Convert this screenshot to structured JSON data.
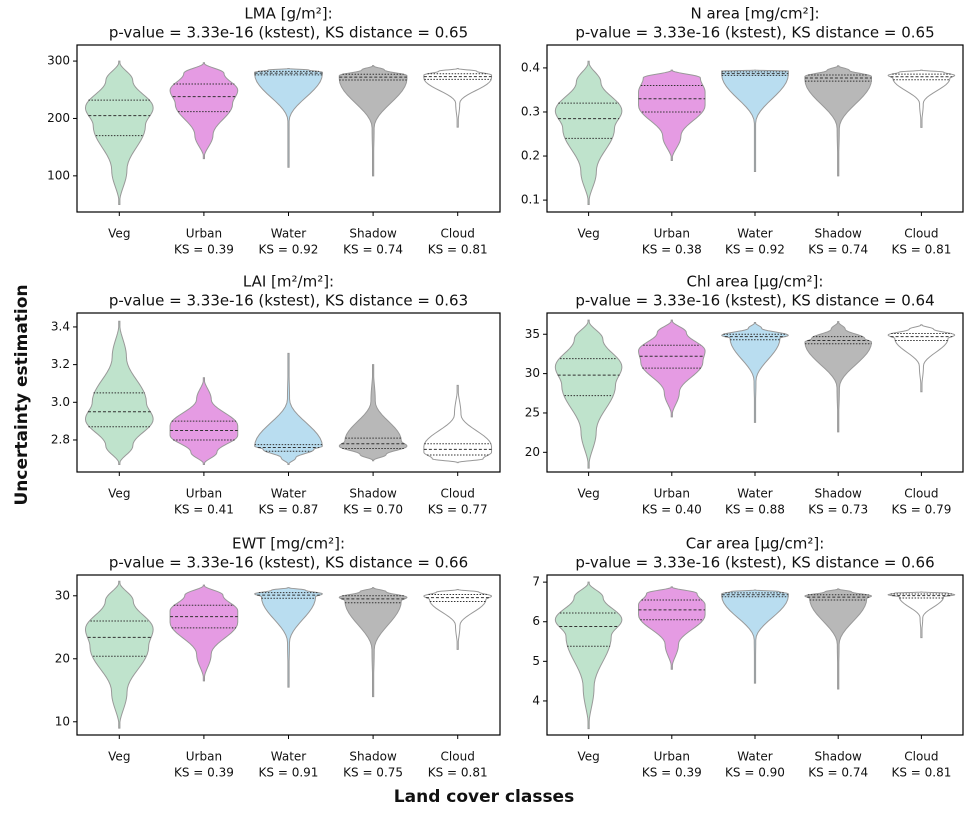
{
  "ylabel": "Uncertainty estimation",
  "xlabel": "Land cover classes",
  "chart_data": [
    {
      "type": "violin",
      "title": "LMA [g/m²]:",
      "subtitle": "p-value = 3.33e-16 (kstest), KS distance = 0.65",
      "categories": [
        "Veg",
        "Urban",
        "Water",
        "Shadow",
        "Cloud"
      ],
      "ks_labels": [
        null,
        "KS = 0.39",
        "KS = 0.92",
        "KS = 0.74",
        "KS = 0.81"
      ],
      "colors": [
        "#bfe3cc",
        "#e59be3",
        "#b9ddf0",
        "#b8b8b8",
        "#ffffff"
      ],
      "ylim": [
        37,
        328
      ],
      "yticks": [
        100,
        200,
        300
      ],
      "violins": [
        {
          "min": 50,
          "q1": 170,
          "median": 205,
          "q3": 232,
          "max": 300
        },
        {
          "min": 130,
          "q1": 212,
          "median": 238,
          "q3": 260,
          "max": 297
        },
        {
          "min": 115,
          "q1": 276,
          "median": 279,
          "q3": 282,
          "max": 287
        },
        {
          "min": 100,
          "q1": 267,
          "median": 272,
          "q3": 277,
          "max": 292
        },
        {
          "min": 185,
          "q1": 268,
          "median": 273,
          "q3": 278,
          "max": 287
        }
      ]
    },
    {
      "type": "violin",
      "title": "N area [mg/cm²]:",
      "subtitle": "p-value = 3.33e-16 (kstest), KS distance = 0.65",
      "categories": [
        "Veg",
        "Urban",
        "Water",
        "Shadow",
        "Cloud"
      ],
      "ks_labels": [
        null,
        "KS = 0.38",
        "KS = 0.92",
        "KS = 0.74",
        "KS = 0.81"
      ],
      "colors": [
        "#bfe3cc",
        "#e59be3",
        "#b9ddf0",
        "#b8b8b8",
        "#ffffff"
      ],
      "ylim": [
        0.073,
        0.452
      ],
      "yticks": [
        0.1,
        0.2,
        0.3,
        0.4
      ],
      "violins": [
        {
          "min": 0.09,
          "q1": 0.24,
          "median": 0.285,
          "q3": 0.32,
          "max": 0.415
        },
        {
          "min": 0.19,
          "q1": 0.3,
          "median": 0.33,
          "q3": 0.36,
          "max": 0.395
        },
        {
          "min": 0.165,
          "q1": 0.383,
          "median": 0.387,
          "q3": 0.391,
          "max": 0.395
        },
        {
          "min": 0.155,
          "q1": 0.37,
          "median": 0.377,
          "q3": 0.384,
          "max": 0.405
        },
        {
          "min": 0.265,
          "q1": 0.373,
          "median": 0.38,
          "q3": 0.386,
          "max": 0.395
        }
      ]
    },
    {
      "type": "violin",
      "title": "LAI [m²/m²]:",
      "subtitle": "p-value = 3.33e-16 (kstest), KS distance = 0.63",
      "categories": [
        "Veg",
        "Urban",
        "Water",
        "Shadow",
        "Cloud"
      ],
      "ks_labels": [
        null,
        "KS = 0.41",
        "KS = 0.87",
        "KS = 0.70",
        "KS = 0.77"
      ],
      "colors": [
        "#bfe3cc",
        "#e59be3",
        "#b9ddf0",
        "#b8b8b8",
        "#ffffff"
      ],
      "ylim": [
        2.63,
        3.474
      ],
      "yticks": [
        2.8,
        {
          "value": 3,
          "label": "3.0"
        },
        3.2,
        3.4
      ],
      "violins": [
        {
          "min": 2.67,
          "q1": 2.87,
          "median": 2.95,
          "q3": 3.05,
          "max": 3.43
        },
        {
          "min": 2.67,
          "q1": 2.8,
          "median": 2.85,
          "q3": 2.9,
          "max": 3.13
        },
        {
          "min": 2.67,
          "q1": 2.74,
          "median": 2.76,
          "q3": 2.775,
          "max": 3.26
        },
        {
          "min": 2.69,
          "q1": 2.755,
          "median": 2.78,
          "q3": 2.81,
          "max": 3.2
        },
        {
          "min": 2.68,
          "q1": 2.72,
          "median": 2.75,
          "q3": 2.78,
          "max": 3.09
        }
      ]
    },
    {
      "type": "violin",
      "title": "Chl area [µg/cm²]:",
      "subtitle": "p-value = 3.33e-16 (kstest), KS distance = 0.64",
      "categories": [
        "Veg",
        "Urban",
        "Water",
        "Shadow",
        "Cloud"
      ],
      "ks_labels": [
        null,
        "KS = 0.40",
        "KS = 0.88",
        "KS = 0.73",
        "KS = 0.79"
      ],
      "colors": [
        "#bfe3cc",
        "#e59be3",
        "#b9ddf0",
        "#b8b8b8",
        "#ffffff"
      ],
      "ylim": [
        17.5,
        37.7
      ],
      "yticks": [
        20,
        25,
        30,
        35
      ],
      "violins": [
        {
          "min": 18,
          "q1": 27.2,
          "median": 29.8,
          "q3": 31.9,
          "max": 36.8
        },
        {
          "min": 24.5,
          "q1": 30.7,
          "median": 32.2,
          "q3": 33.6,
          "max": 36.8
        },
        {
          "min": 23.8,
          "q1": 34.3,
          "median": 34.7,
          "q3": 35.0,
          "max": 36.5
        },
        {
          "min": 22.6,
          "q1": 33.8,
          "median": 34.2,
          "q3": 34.7,
          "max": 36.6
        },
        {
          "min": 27.7,
          "q1": 34.2,
          "median": 34.7,
          "q3": 35.1,
          "max": 36.2
        }
      ]
    },
    {
      "type": "violin",
      "title": "EWT [mg/cm²]:",
      "subtitle": "p-value = 3.33e-16 (kstest), KS distance = 0.66",
      "categories": [
        "Veg",
        "Urban",
        "Water",
        "Shadow",
        "Cloud"
      ],
      "ks_labels": [
        null,
        "KS = 0.39",
        "KS = 0.91",
        "KS = 0.75",
        "KS = 0.81"
      ],
      "colors": [
        "#bfe3cc",
        "#e59be3",
        "#b9ddf0",
        "#b8b8b8",
        "#ffffff"
      ],
      "ylim": [
        7.9,
        33.3
      ],
      "yticks": [
        10,
        20,
        30
      ],
      "violins": [
        {
          "min": 9,
          "q1": 20.4,
          "median": 23.4,
          "q3": 26,
          "max": 32.3
        },
        {
          "min": 16.5,
          "q1": 24.9,
          "median": 26.7,
          "q3": 28.5,
          "max": 31.7
        },
        {
          "min": 15.5,
          "q1": 29.6,
          "median": 30.1,
          "q3": 30.5,
          "max": 31.3
        },
        {
          "min": 14,
          "q1": 28.9,
          "median": 29.5,
          "q3": 30,
          "max": 31.3
        },
        {
          "min": 21.5,
          "q1": 29.1,
          "median": 29.7,
          "q3": 30.2,
          "max": 31
        }
      ]
    },
    {
      "type": "violin",
      "title": "Car area [µg/cm²]:",
      "subtitle": "p-value = 3.33e-16 (kstest), KS distance = 0.66",
      "categories": [
        "Veg",
        "Urban",
        "Water",
        "Shadow",
        "Cloud"
      ],
      "ks_labels": [
        null,
        "KS = 0.39",
        "KS = 0.90",
        "KS = 0.74",
        "KS = 0.81"
      ],
      "colors": [
        "#bfe3cc",
        "#e59be3",
        "#b9ddf0",
        "#b8b8b8",
        "#ffffff"
      ],
      "ylim": [
        3.14,
        7.18
      ],
      "yticks": [
        4,
        5,
        6,
        7
      ],
      "violins": [
        {
          "min": 3.3,
          "q1": 5.38,
          "median": 5.88,
          "q3": 6.22,
          "max": 7.0
        },
        {
          "min": 4.8,
          "q1": 6.05,
          "median": 6.3,
          "q3": 6.55,
          "max": 6.88
        },
        {
          "min": 4.45,
          "q1": 6.63,
          "median": 6.68,
          "q3": 6.73,
          "max": 6.8
        },
        {
          "min": 4.3,
          "q1": 6.55,
          "median": 6.62,
          "q3": 6.68,
          "max": 6.83
        },
        {
          "min": 5.6,
          "q1": 6.6,
          "median": 6.66,
          "q3": 6.7,
          "max": 6.75
        }
      ]
    }
  ]
}
